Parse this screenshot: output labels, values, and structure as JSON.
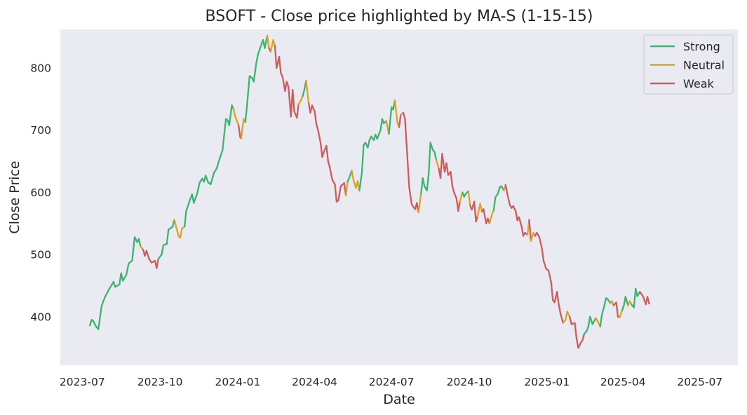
{
  "chart_data": {
    "type": "line",
    "title": "BSOFT - Close price highlighted by MA-S (1-15-15)",
    "xlabel": "Date",
    "ylabel": "Close Price",
    "xlim": [
      "2023-06-05",
      "2025-08-15"
    ],
    "ylim": [
      322,
      862
    ],
    "grid": false,
    "legend_position": "top-right",
    "x_ticks": [
      "2023-07",
      "2023-10",
      "2024-01",
      "2024-04",
      "2024-07",
      "2024-10",
      "2025-01",
      "2025-04",
      "2025-07"
    ],
    "y_ticks": [
      400,
      500,
      600,
      700,
      800
    ],
    "colors": {
      "Strong": "#3cb371",
      "Neutral": "#daa520",
      "Weak": "#cd5c5c",
      "background": "#eaeaf2"
    },
    "series": [
      {
        "name": "Strong"
      },
      {
        "name": "Neutral"
      },
      {
        "name": "Weak"
      }
    ],
    "points": [
      [
        "2023-07-10",
        386,
        "Strong"
      ],
      [
        "2023-07-12",
        395,
        "Strong"
      ],
      [
        "2023-07-14",
        393,
        "Strong"
      ],
      [
        "2023-07-17",
        385,
        "Strong"
      ],
      [
        "2023-07-20",
        380,
        "Strong"
      ],
      [
        "2023-07-24",
        418,
        "Strong"
      ],
      [
        "2023-07-28",
        432,
        "Strong"
      ],
      [
        "2023-08-02",
        445,
        "Strong"
      ],
      [
        "2023-08-07",
        456,
        "Strong"
      ],
      [
        "2023-08-09",
        448,
        "Strong"
      ],
      [
        "2023-08-14",
        452,
        "Strong"
      ],
      [
        "2023-08-16",
        470,
        "Strong"
      ],
      [
        "2023-08-18",
        458,
        "Strong"
      ],
      [
        "2023-08-22",
        467,
        "Strong"
      ],
      [
        "2023-08-25",
        486,
        "Strong"
      ],
      [
        "2023-08-29",
        490,
        "Strong"
      ],
      [
        "2023-09-01",
        528,
        "Strong"
      ],
      [
        "2023-09-04",
        520,
        "Strong"
      ],
      [
        "2023-09-06",
        525,
        "Strong"
      ],
      [
        "2023-09-08",
        513,
        "Strong"
      ],
      [
        "2023-09-11",
        508,
        "Neutral"
      ],
      [
        "2023-09-13",
        498,
        "Weak"
      ],
      [
        "2023-09-15",
        506,
        "Weak"
      ],
      [
        "2023-09-18",
        493,
        "Weak"
      ],
      [
        "2023-09-21",
        487,
        "Weak"
      ],
      [
        "2023-09-25",
        490,
        "Weak"
      ],
      [
        "2023-09-27",
        478,
        "Weak"
      ],
      [
        "2023-09-29",
        493,
        "Weak"
      ],
      [
        "2023-10-03",
        500,
        "Strong"
      ],
      [
        "2023-10-05",
        515,
        "Strong"
      ],
      [
        "2023-10-09",
        517,
        "Strong"
      ],
      [
        "2023-10-11",
        540,
        "Strong"
      ],
      [
        "2023-10-16",
        545,
        "Strong"
      ],
      [
        "2023-10-18",
        556,
        "Strong"
      ],
      [
        "2023-10-20",
        545,
        "Neutral"
      ],
      [
        "2023-10-23",
        530,
        "Neutral"
      ],
      [
        "2023-10-25",
        527,
        "Neutral"
      ],
      [
        "2023-10-27",
        542,
        "Neutral"
      ],
      [
        "2023-10-30",
        545,
        "Neutral"
      ],
      [
        "2023-11-01",
        570,
        "Strong"
      ],
      [
        "2023-11-06",
        590,
        "Strong"
      ],
      [
        "2023-11-08",
        597,
        "Strong"
      ],
      [
        "2023-11-10",
        583,
        "Strong"
      ],
      [
        "2023-11-14",
        598,
        "Strong"
      ],
      [
        "2023-11-17",
        616,
        "Strong"
      ],
      [
        "2023-11-20",
        622,
        "Strong"
      ],
      [
        "2023-11-22",
        617,
        "Strong"
      ],
      [
        "2023-11-24",
        627,
        "Strong"
      ],
      [
        "2023-11-27",
        616,
        "Strong"
      ],
      [
        "2023-11-30",
        613,
        "Strong"
      ],
      [
        "2023-12-04",
        632,
        "Strong"
      ],
      [
        "2023-12-07",
        638,
        "Strong"
      ],
      [
        "2023-12-11",
        656,
        "Strong"
      ],
      [
        "2023-12-14",
        668,
        "Strong"
      ],
      [
        "2023-12-18",
        718,
        "Strong"
      ],
      [
        "2023-12-20",
        716,
        "Strong"
      ],
      [
        "2023-12-22",
        708,
        "Strong"
      ],
      [
        "2023-12-25",
        740,
        "Strong"
      ],
      [
        "2023-12-27",
        734,
        "Strong"
      ],
      [
        "2023-12-29",
        722,
        "Neutral"
      ],
      [
        "2024-01-02",
        708,
        "Neutral"
      ],
      [
        "2024-01-04",
        688,
        "Weak"
      ],
      [
        "2024-01-05",
        687,
        "Weak"
      ],
      [
        "2024-01-08",
        718,
        "Neutral"
      ],
      [
        "2024-01-10",
        713,
        "Neutral"
      ],
      [
        "2024-01-12",
        740,
        "Strong"
      ],
      [
        "2024-01-15",
        787,
        "Strong"
      ],
      [
        "2024-01-18",
        784,
        "Strong"
      ],
      [
        "2024-01-20",
        778,
        "Strong"
      ],
      [
        "2024-01-23",
        808,
        "Strong"
      ],
      [
        "2024-01-25",
        822,
        "Strong"
      ],
      [
        "2024-01-29",
        838,
        "Strong"
      ],
      [
        "2024-01-31",
        845,
        "Strong"
      ],
      [
        "2024-02-02",
        832,
        "Strong"
      ],
      [
        "2024-02-05",
        852,
        "Strong"
      ],
      [
        "2024-02-07",
        832,
        "Neutral"
      ],
      [
        "2024-02-09",
        826,
        "Weak"
      ],
      [
        "2024-02-12",
        845,
        "Neutral"
      ],
      [
        "2024-02-14",
        836,
        "Neutral"
      ],
      [
        "2024-02-16",
        800,
        "Weak"
      ],
      [
        "2024-02-19",
        818,
        "Weak"
      ],
      [
        "2024-02-21",
        792,
        "Weak"
      ],
      [
        "2024-02-23",
        786,
        "Weak"
      ],
      [
        "2024-02-26",
        763,
        "Weak"
      ],
      [
        "2024-02-28",
        778,
        "Weak"
      ],
      [
        "2024-03-01",
        770,
        "Weak"
      ],
      [
        "2024-03-04",
        722,
        "Weak"
      ],
      [
        "2024-03-06",
        765,
        "Weak"
      ],
      [
        "2024-03-08",
        730,
        "Weak"
      ],
      [
        "2024-03-11",
        720,
        "Weak"
      ],
      [
        "2024-03-13",
        742,
        "Weak"
      ],
      [
        "2024-03-15",
        746,
        "Neutral"
      ],
      [
        "2024-03-18",
        755,
        "Neutral"
      ],
      [
        "2024-03-20",
        766,
        "Strong"
      ],
      [
        "2024-03-22",
        780,
        "Strong"
      ],
      [
        "2024-03-25",
        743,
        "Neutral"
      ],
      [
        "2024-03-27",
        728,
        "Weak"
      ],
      [
        "2024-03-29",
        740,
        "Weak"
      ],
      [
        "2024-04-01",
        730,
        "Weak"
      ],
      [
        "2024-04-03",
        710,
        "Weak"
      ],
      [
        "2024-04-05",
        700,
        "Weak"
      ],
      [
        "2024-04-08",
        680,
        "Weak"
      ],
      [
        "2024-04-10",
        657,
        "Weak"
      ],
      [
        "2024-04-12",
        665,
        "Weak"
      ],
      [
        "2024-04-15",
        675,
        "Weak"
      ],
      [
        "2024-04-17",
        650,
        "Weak"
      ],
      [
        "2024-04-19",
        640,
        "Weak"
      ],
      [
        "2024-04-22",
        620,
        "Weak"
      ],
      [
        "2024-04-25",
        613,
        "Weak"
      ],
      [
        "2024-04-27",
        585,
        "Weak"
      ],
      [
        "2024-04-29",
        587,
        "Weak"
      ],
      [
        "2024-05-02",
        610,
        "Weak"
      ],
      [
        "2024-05-06",
        615,
        "Weak"
      ],
      [
        "2024-05-08",
        595,
        "Weak"
      ],
      [
        "2024-05-10",
        617,
        "Neutral"
      ],
      [
        "2024-05-13",
        627,
        "Strong"
      ],
      [
        "2024-05-15",
        635,
        "Strong"
      ],
      [
        "2024-05-17",
        620,
        "Neutral"
      ],
      [
        "2024-05-20",
        607,
        "Neutral"
      ],
      [
        "2024-05-22",
        618,
        "Neutral"
      ],
      [
        "2024-05-24",
        603,
        "Neutral"
      ],
      [
        "2024-05-27",
        632,
        "Strong"
      ],
      [
        "2024-05-29",
        676,
        "Strong"
      ],
      [
        "2024-05-31",
        680,
        "Strong"
      ],
      [
        "2024-06-03",
        672,
        "Strong"
      ],
      [
        "2024-06-05",
        684,
        "Strong"
      ],
      [
        "2024-06-07",
        690,
        "Strong"
      ],
      [
        "2024-06-10",
        684,
        "Strong"
      ],
      [
        "2024-06-12",
        693,
        "Strong"
      ],
      [
        "2024-06-14",
        686,
        "Strong"
      ],
      [
        "2024-06-18",
        700,
        "Strong"
      ],
      [
        "2024-06-20",
        718,
        "Strong"
      ],
      [
        "2024-06-22",
        711,
        "Strong"
      ],
      [
        "2024-06-25",
        715,
        "Strong"
      ],
      [
        "2024-06-27",
        700,
        "Neutral"
      ],
      [
        "2024-06-28",
        694,
        "Neutral"
      ],
      [
        "2024-07-01",
        737,
        "Strong"
      ],
      [
        "2024-07-03",
        733,
        "Strong"
      ],
      [
        "2024-07-05",
        748,
        "Strong"
      ],
      [
        "2024-07-08",
        712,
        "Neutral"
      ],
      [
        "2024-07-10",
        705,
        "Neutral"
      ],
      [
        "2024-07-12",
        725,
        "Weak"
      ],
      [
        "2024-07-15",
        728,
        "Neutral"
      ],
      [
        "2024-07-17",
        718,
        "Weak"
      ],
      [
        "2024-07-22",
        607,
        "Weak"
      ],
      [
        "2024-07-25",
        580,
        "Weak"
      ],
      [
        "2024-07-29",
        573,
        "Weak"
      ],
      [
        "2024-07-31",
        583,
        "Weak"
      ],
      [
        "2024-08-02",
        568,
        "Weak"
      ],
      [
        "2024-08-05",
        598,
        "Neutral"
      ],
      [
        "2024-08-07",
        623,
        "Strong"
      ],
      [
        "2024-08-09",
        610,
        "Strong"
      ],
      [
        "2024-08-12",
        603,
        "Strong"
      ],
      [
        "2024-08-14",
        630,
        "Strong"
      ],
      [
        "2024-08-16",
        680,
        "Strong"
      ],
      [
        "2024-08-19",
        668,
        "Strong"
      ],
      [
        "2024-08-21",
        665,
        "Strong"
      ],
      [
        "2024-08-23",
        652,
        "Strong"
      ],
      [
        "2024-08-26",
        638,
        "Neutral"
      ],
      [
        "2024-08-28",
        623,
        "Weak"
      ],
      [
        "2024-08-30",
        662,
        "Weak"
      ],
      [
        "2024-09-02",
        633,
        "Weak"
      ],
      [
        "2024-09-04",
        647,
        "Weak"
      ],
      [
        "2024-09-06",
        628,
        "Weak"
      ],
      [
        "2024-09-09",
        633,
        "Weak"
      ],
      [
        "2024-09-11",
        610,
        "Weak"
      ],
      [
        "2024-09-13",
        600,
        "Weak"
      ],
      [
        "2024-09-16",
        590,
        "Weak"
      ],
      [
        "2024-09-18",
        570,
        "Weak"
      ],
      [
        "2024-09-20",
        585,
        "Weak"
      ],
      [
        "2024-09-23",
        600,
        "Neutral"
      ],
      [
        "2024-09-25",
        593,
        "Strong"
      ],
      [
        "2024-09-27",
        598,
        "Strong"
      ],
      [
        "2024-09-30",
        602,
        "Strong"
      ],
      [
        "2024-10-02",
        579,
        "Neutral"
      ],
      [
        "2024-10-04",
        572,
        "Weak"
      ],
      [
        "2024-10-07",
        585,
        "Weak"
      ],
      [
        "2024-10-09",
        553,
        "Weak"
      ],
      [
        "2024-10-11",
        562,
        "Weak"
      ],
      [
        "2024-10-14",
        582,
        "Neutral"
      ],
      [
        "2024-10-16",
        569,
        "Neutral"
      ],
      [
        "2024-10-18",
        573,
        "Weak"
      ],
      [
        "2024-10-21",
        550,
        "Weak"
      ],
      [
        "2024-10-23",
        558,
        "Weak"
      ],
      [
        "2024-10-25",
        550,
        "Weak"
      ],
      [
        "2024-10-28",
        565,
        "Neutral"
      ],
      [
        "2024-10-30",
        571,
        "Neutral"
      ],
      [
        "2024-11-01",
        592,
        "Strong"
      ],
      [
        "2024-11-04",
        598,
        "Strong"
      ],
      [
        "2024-11-06",
        608,
        "Strong"
      ],
      [
        "2024-11-08",
        610,
        "Strong"
      ],
      [
        "2024-11-11",
        603,
        "Strong"
      ],
      [
        "2024-11-13",
        612,
        "Neutral"
      ],
      [
        "2024-11-15",
        598,
        "Weak"
      ],
      [
        "2024-11-18",
        580,
        "Weak"
      ],
      [
        "2024-11-20",
        575,
        "Weak"
      ],
      [
        "2024-11-22",
        578,
        "Weak"
      ],
      [
        "2024-11-25",
        570,
        "Weak"
      ],
      [
        "2024-11-27",
        555,
        "Weak"
      ],
      [
        "2024-11-29",
        560,
        "Weak"
      ],
      [
        "2024-12-02",
        545,
        "Weak"
      ],
      [
        "2024-12-04",
        530,
        "Weak"
      ],
      [
        "2024-12-06",
        535,
        "Weak"
      ],
      [
        "2024-12-09",
        532,
        "Weak"
      ],
      [
        "2024-12-11",
        556,
        "Neutral"
      ],
      [
        "2024-12-13",
        522,
        "Weak"
      ],
      [
        "2024-12-16",
        535,
        "Neutral"
      ],
      [
        "2024-12-18",
        530,
        "Neutral"
      ],
      [
        "2024-12-20",
        535,
        "Weak"
      ],
      [
        "2024-12-23",
        528,
        "Weak"
      ],
      [
        "2024-12-26",
        510,
        "Weak"
      ],
      [
        "2024-12-28",
        490,
        "Weak"
      ],
      [
        "2024-12-31",
        477,
        "Weak"
      ],
      [
        "2025-01-03",
        474,
        "Weak"
      ],
      [
        "2025-01-06",
        455,
        "Weak"
      ],
      [
        "2025-01-08",
        427,
        "Weak"
      ],
      [
        "2025-01-10",
        423,
        "Weak"
      ],
      [
        "2025-01-13",
        440,
        "Weak"
      ],
      [
        "2025-01-15",
        420,
        "Weak"
      ],
      [
        "2025-01-17",
        405,
        "Weak"
      ],
      [
        "2025-01-20",
        390,
        "Weak"
      ],
      [
        "2025-01-23",
        395,
        "Neutral"
      ],
      [
        "2025-01-25",
        408,
        "Neutral"
      ],
      [
        "2025-01-28",
        400,
        "Neutral"
      ],
      [
        "2025-01-30",
        388,
        "Weak"
      ],
      [
        "2025-02-03",
        390,
        "Weak"
      ],
      [
        "2025-02-05",
        366,
        "Weak"
      ],
      [
        "2025-02-07",
        350,
        "Weak"
      ],
      [
        "2025-02-10",
        358,
        "Weak"
      ],
      [
        "2025-02-12",
        362,
        "Weak"
      ],
      [
        "2025-02-14",
        372,
        "Weak"
      ],
      [
        "2025-02-17",
        377,
        "Strong"
      ],
      [
        "2025-02-19",
        384,
        "Strong"
      ],
      [
        "2025-02-21",
        400,
        "Strong"
      ],
      [
        "2025-02-24",
        388,
        "Strong"
      ],
      [
        "2025-02-26",
        393,
        "Strong"
      ],
      [
        "2025-02-28",
        398,
        "Strong"
      ],
      [
        "2025-03-03",
        390,
        "Neutral"
      ],
      [
        "2025-03-05",
        384,
        "Neutral"
      ],
      [
        "2025-03-07",
        403,
        "Strong"
      ],
      [
        "2025-03-10",
        418,
        "Strong"
      ],
      [
        "2025-03-12",
        430,
        "Strong"
      ],
      [
        "2025-03-14",
        428,
        "Strong"
      ],
      [
        "2025-03-17",
        422,
        "Strong"
      ],
      [
        "2025-03-19",
        425,
        "Neutral"
      ],
      [
        "2025-03-21",
        418,
        "Neutral"
      ],
      [
        "2025-03-24",
        423,
        "Weak"
      ],
      [
        "2025-03-26",
        400,
        "Weak"
      ],
      [
        "2025-03-28",
        399,
        "Weak"
      ],
      [
        "2025-03-31",
        410,
        "Neutral"
      ],
      [
        "2025-04-02",
        418,
        "Strong"
      ],
      [
        "2025-04-04",
        432,
        "Strong"
      ],
      [
        "2025-04-07",
        418,
        "Strong"
      ],
      [
        "2025-04-09",
        425,
        "Neutral"
      ],
      [
        "2025-04-11",
        420,
        "Neutral"
      ],
      [
        "2025-04-14",
        415,
        "Strong"
      ],
      [
        "2025-04-16",
        445,
        "Strong"
      ],
      [
        "2025-04-18",
        433,
        "Strong"
      ],
      [
        "2025-04-21",
        440,
        "Strong"
      ],
      [
        "2025-04-23",
        436,
        "Weak"
      ],
      [
        "2025-04-25",
        432,
        "Weak"
      ],
      [
        "2025-04-28",
        420,
        "Weak"
      ],
      [
        "2025-04-30",
        432,
        "Weak"
      ],
      [
        "2025-05-02",
        421,
        "Weak"
      ]
    ]
  }
}
